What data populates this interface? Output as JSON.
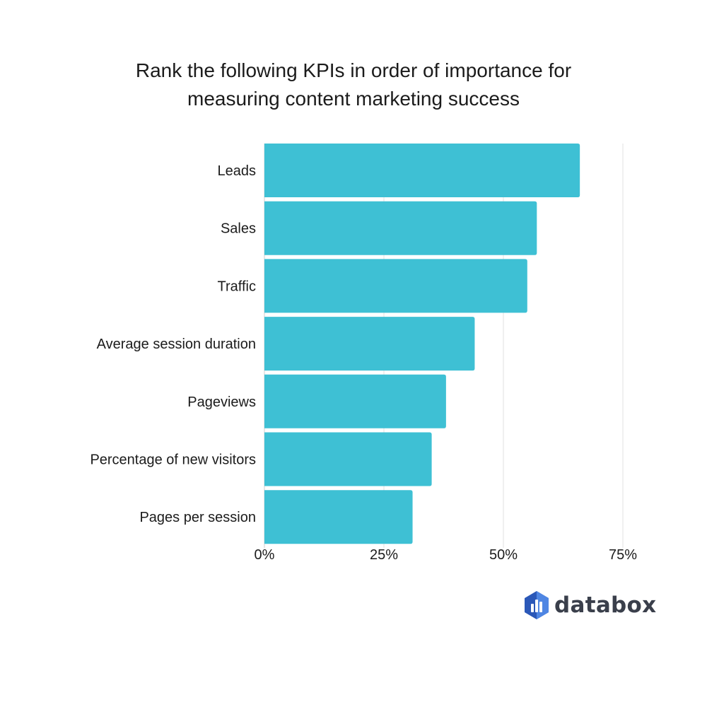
{
  "chart_data": {
    "type": "bar",
    "orientation": "horizontal",
    "title": "Rank the following KPIs in order of importance for measuring content marketing success",
    "title_lines": [
      "Rank the following KPIs in order of importance for",
      "measuring content marketing success"
    ],
    "categories": [
      "Leads",
      "Sales",
      "Traffic",
      "Average session duration",
      "Pageviews",
      "Percentage of new visitors",
      "Pages per session"
    ],
    "values": [
      66,
      57,
      55,
      44,
      38,
      35,
      31
    ],
    "xlim": [
      0,
      75
    ],
    "xticks": [
      0,
      25,
      50,
      75
    ],
    "xtick_labels": [
      "0%",
      "25%",
      "50%",
      "75%"
    ],
    "grid": true,
    "legend": "none",
    "bar_color": "#3ec0d4",
    "grid_color": "#e2e2e2"
  },
  "brand": {
    "name": "databox",
    "icon": "databox-logo-icon",
    "color_dark": "#2b58b8",
    "color_light": "#4f86e3"
  }
}
